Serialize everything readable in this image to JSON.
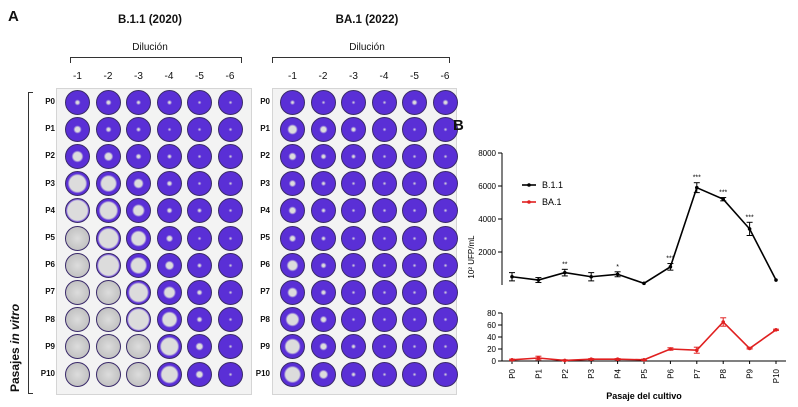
{
  "panel_a": {
    "letter": "A",
    "row_axis_label": {
      "prefix": "Pasajes ",
      "italic": "in vitro"
    },
    "plates": [
      {
        "title": "B.1.1 (2020)",
        "dilution_label": "Dilución",
        "columns": [
          "-1",
          "-2",
          "-3",
          "-4",
          "-5",
          "-6"
        ],
        "rows": [
          "P0",
          "P1",
          "P2",
          "P3",
          "P4",
          "P5",
          "P6",
          "P7",
          "P8",
          "P9",
          "P10"
        ],
        "lysis_levels": [
          [
            0.1,
            0.1,
            0.05,
            0.05,
            0,
            0
          ],
          [
            0.2,
            0.1,
            0.05,
            0,
            0,
            0
          ],
          [
            0.35,
            0.25,
            0.1,
            0.05,
            0,
            0
          ],
          [
            0.7,
            0.6,
            0.3,
            0.1,
            0,
            0
          ],
          [
            0.85,
            0.7,
            0.4,
            0.1,
            0.05,
            0
          ],
          [
            0.95,
            0.8,
            0.55,
            0.15,
            0,
            0
          ],
          [
            0.95,
            0.85,
            0.6,
            0.25,
            0.05,
            0
          ],
          [
            1,
            0.9,
            0.75,
            0.4,
            0.1,
            0
          ],
          [
            1,
            0.95,
            0.85,
            0.55,
            0.1,
            0
          ],
          [
            1,
            1,
            0.9,
            0.7,
            0.2,
            0
          ],
          [
            1,
            1,
            0.95,
            0.65,
            0.2,
            0
          ]
        ]
      },
      {
        "title": "BA.1 (2022)",
        "dilution_label": "Dilución",
        "columns": [
          "-1",
          "-2",
          "-3",
          "-4",
          "-5",
          "-6"
        ],
        "rows": [
          "P0",
          "P1",
          "P2",
          "P3",
          "P4",
          "P5",
          "P6",
          "P7",
          "P8",
          "P9",
          "P10"
        ],
        "lysis_levels": [
          [
            0.05,
            0,
            0,
            0,
            0.1,
            0.1
          ],
          [
            0.3,
            0.2,
            0.1,
            0,
            0,
            0
          ],
          [
            0.2,
            0.1,
            0.05,
            0,
            0,
            0
          ],
          [
            0.15,
            0.05,
            0,
            0,
            0,
            0
          ],
          [
            0.2,
            0.05,
            0,
            0,
            0,
            0
          ],
          [
            0.15,
            0.05,
            0,
            0,
            0,
            0
          ],
          [
            0.35,
            0.1,
            0,
            0,
            0,
            0
          ],
          [
            0.3,
            0.1,
            0,
            0,
            0,
            0
          ],
          [
            0.45,
            0.15,
            0,
            0,
            0,
            0
          ],
          [
            0.55,
            0.2,
            0.05,
            0,
            0,
            0
          ],
          [
            0.6,
            0.25,
            0.05,
            0,
            0,
            0
          ]
        ]
      }
    ],
    "colors": {
      "stain": "#5a2fd6",
      "stain_dark": "#2a167a",
      "lysed": "#dcdcdc"
    }
  },
  "panel_b": {
    "letter": "B",
    "chart_data": {
      "type": "line",
      "x": [
        "P0",
        "P1",
        "P2",
        "P3",
        "P4",
        "P5",
        "P6",
        "P7",
        "P8",
        "P9",
        "P10"
      ],
      "xlabel": "Pasaje del cultivo",
      "ylabel": "10² UFP/mL",
      "panels": [
        {
          "ylim": [
            0,
            8000
          ],
          "yticks": [
            2000,
            4000,
            6000,
            8000
          ],
          "series": [
            {
              "name": "B.1.1",
              "color": "#000000",
              "values": [
                500,
                300,
                750,
                500,
                650,
                100,
                1100,
                5900,
                5200,
                3400,
                300
              ],
              "errors": [
                250,
                150,
                200,
                250,
                150,
                0,
                200,
                300,
                100,
                400,
                0
              ],
              "significance": [
                "",
                "",
                "**",
                "",
                "*",
                "",
                "***",
                "***",
                "***",
                "***",
                ""
              ]
            }
          ]
        },
        {
          "ylim": [
            0,
            80
          ],
          "yticks": [
            0,
            20,
            40,
            60,
            80
          ],
          "series": [
            {
              "name": "BA.1",
              "color": "#e02020",
              "values": [
                2,
                5,
                1,
                3,
                3,
                2,
                20,
                18,
                65,
                21,
                52
              ],
              "errors": [
                1,
                3,
                1,
                1,
                1,
                1,
                2,
                5,
                7,
                1,
                1
              ]
            }
          ]
        }
      ],
      "legend": [
        {
          "name": "B.1.1",
          "color": "#000000"
        },
        {
          "name": "BA.1",
          "color": "#e02020"
        }
      ]
    }
  }
}
